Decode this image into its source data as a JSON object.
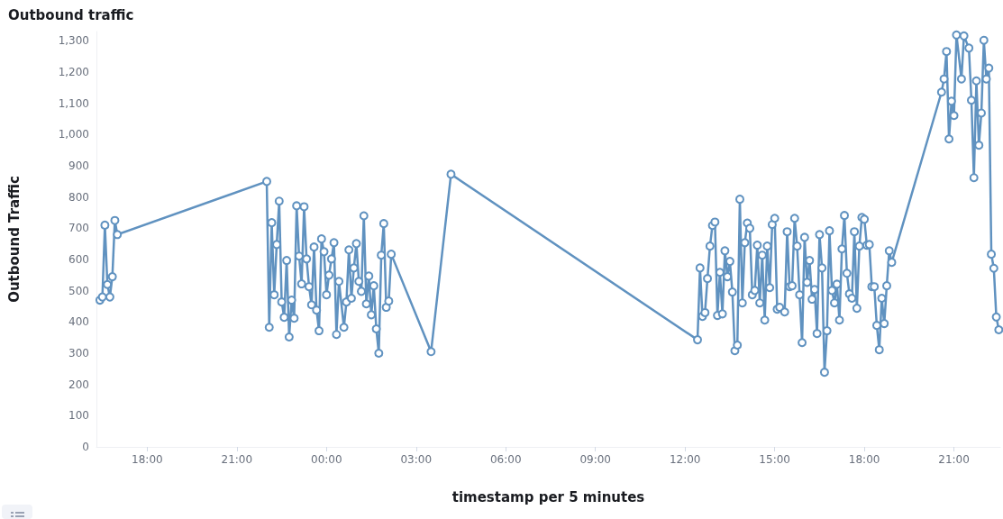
{
  "chart_data": {
    "type": "line",
    "title": "Outbound traffic",
    "xlabel": "timestamp per 5 minutes",
    "ylabel": "Outbound Traffic",
    "x": [
      "--01-01T16:25",
      "--01-01T16:30",
      "--01-01T16:35",
      "--01-01T16:40",
      "--01-01T16:45",
      "--01-01T16:50",
      "--01-01T16:55",
      "--01-01T17:00",
      "--01-01T22:00",
      "--01-01T22:05",
      "--01-01T22:10",
      "--01-01T22:15",
      "--01-01T22:20",
      "--01-01T22:25",
      "--01-01T22:30",
      "--01-01T22:35",
      "--01-01T22:40",
      "--01-01T22:45",
      "--01-01T22:50",
      "--01-01T22:55",
      "--01-01T23:00",
      "--01-01T23:05",
      "--01-01T23:10",
      "--01-01T23:15",
      "--01-01T23:20",
      "--01-01T23:25",
      "--01-01T23:30",
      "--01-01T23:35",
      "--01-01T23:40",
      "--01-01T23:45",
      "--01-01T23:50",
      "--01-01T23:55",
      "--01-02T00:00",
      "--01-02T00:05",
      "--01-02T00:10",
      "--01-02T00:15",
      "--01-02T00:20",
      "--01-02T00:25",
      "--01-02T00:35",
      "--01-02T00:40",
      "--01-02T00:45",
      "--01-02T00:50",
      "--01-02T00:55",
      "--01-02T01:00",
      "--01-02T01:05",
      "--01-02T01:10",
      "--01-02T01:15",
      "--01-02T01:20",
      "--01-02T01:25",
      "--01-02T01:30",
      "--01-02T01:35",
      "--01-02T01:40",
      "--01-02T01:45",
      "--01-02T01:50",
      "--01-02T01:55",
      "--01-02T02:00",
      "--01-02T02:05",
      "--01-02T02:10",
      "--01-02T03:30",
      "--01-02T04:10",
      "--01-02T12:25",
      "--01-02T12:30",
      "--01-02T12:35",
      "--01-02T12:40",
      "--01-02T12:45",
      "--01-02T12:50",
      "--01-02T12:55",
      "--01-02T13:00",
      "--01-02T13:05",
      "--01-02T13:10",
      "--01-02T13:15",
      "--01-02T13:20",
      "--01-02T13:25",
      "--01-02T13:30",
      "--01-02T13:35",
      "--01-02T13:40",
      "--01-02T13:45",
      "--01-02T13:50",
      "--01-02T13:55",
      "--01-02T14:00",
      "--01-02T14:05",
      "--01-02T14:10",
      "--01-02T14:15",
      "--01-02T14:20",
      "--01-02T14:25",
      "--01-02T14:30",
      "--01-02T14:35",
      "--01-02T14:40",
      "--01-02T14:45",
      "--01-02T14:50",
      "--01-02T14:55",
      "--01-02T15:00",
      "--01-02T15:05",
      "--01-02T15:10",
      "--01-02T15:20",
      "--01-02T15:25",
      "--01-02T15:30",
      "--01-02T15:35",
      "--01-02T15:40",
      "--01-02T15:45",
      "--01-02T15:50",
      "--01-02T15:55",
      "--01-02T16:00",
      "--01-02T16:05",
      "--01-02T16:10",
      "--01-02T16:15",
      "--01-02T16:20",
      "--01-02T16:25",
      "--01-02T16:30",
      "--01-02T16:35",
      "--01-02T16:40",
      "--01-02T16:45",
      "--01-02T16:50",
      "--01-02T16:55",
      "--01-02T17:00",
      "--01-02T17:05",
      "--01-02T17:10",
      "--01-02T17:15",
      "--01-02T17:20",
      "--01-02T17:25",
      "--01-02T17:30",
      "--01-02T17:35",
      "--01-02T17:40",
      "--01-02T17:45",
      "--01-02T17:50",
      "--01-02T17:55",
      "--01-02T18:00",
      "--01-02T18:05",
      "--01-02T18:10",
      "--01-02T18:15",
      "--01-02T18:20",
      "--01-02T18:25",
      "--01-02T18:30",
      "--01-02T18:35",
      "--01-02T18:40",
      "--01-02T18:45",
      "--01-02T18:50",
      "--01-02T18:55",
      "--01-02T20:35",
      "--01-02T20:40",
      "--01-02T20:45",
      "--01-02T20:50",
      "--01-02T20:55",
      "--01-02T21:00",
      "--01-02T21:05",
      "--01-02T21:15",
      "--01-02T21:20",
      "--01-02T21:30",
      "--01-02T21:35",
      "--01-02T21:40",
      "--01-02T21:45",
      "--01-02T21:50",
      "--01-02T21:55",
      "--01-02T22:00",
      "--01-02T22:05",
      "--01-02T22:10",
      "--01-02T22:15",
      "--01-02T22:20",
      "--01-02T22:25",
      "--01-02T22:30"
    ],
    "series": [
      {
        "color": "#6092c0",
        "values": [
          470,
          480,
          710,
          520,
          480,
          545,
          725,
          680,
          850,
          383,
          718,
          487,
          648,
          787,
          464,
          415,
          597,
          352,
          470,
          412,
          772,
          611,
          522,
          769,
          602,
          513,
          455,
          640,
          438,
          372,
          666,
          625,
          487,
          550,
          602,
          654,
          360,
          530,
          383,
          464,
          631,
          476,
          573,
          651,
          530,
          498,
          740,
          458,
          547,
          423,
          516,
          378,
          300,
          614,
          715,
          447,
          467,
          617,
          305,
          873,
          343,
          573,
          418,
          430,
          539,
          643,
          709,
          720,
          421,
          559,
          426,
          628,
          545,
          594,
          496,
          308,
          326,
          793,
          461,
          654,
          717,
          700,
          487,
          501,
          646,
          461,
          614,
          406,
          643,
          510,
          712,
          732,
          441,
          447,
          432,
          689,
          513,
          516,
          732,
          643,
          487,
          334,
          671,
          527,
          597,
          473,
          504,
          363,
          680,
          573,
          239,
          372,
          692,
          501,
          461,
          521,
          406,
          634,
          741,
          556,
          490,
          476,
          689,
          444,
          643,
          735,
          729,
          646,
          648,
          513,
          513,
          389,
          311,
          476,
          395,
          516,
          628,
          591,
          1136,
          1178,
          1266,
          986,
          1107,
          1061,
          1319,
          1178,
          1316,
          1277,
          1110,
          862,
          1172,
          966,
          1069,
          1302,
          1178,
          1213,
          617,
          572,
          416,
          375
        ]
      }
    ],
    "xlim": [
      "--01-01T16:18",
      "--01-02T22:33"
    ],
    "xticks": [
      {
        "value": "--01-01T18:00",
        "label": "18:00"
      },
      {
        "value": "--01-01T21:00",
        "label": "21:00"
      },
      {
        "value": "--01-02T00:00",
        "label": "00:00"
      },
      {
        "value": "--01-02T03:00",
        "label": "03:00"
      },
      {
        "value": "--01-02T06:00",
        "label": "06:00"
      },
      {
        "value": "--01-02T09:00",
        "label": "09:00"
      },
      {
        "value": "--01-02T12:00",
        "label": "12:00"
      },
      {
        "value": "--01-02T15:00",
        "label": "15:00"
      },
      {
        "value": "--01-02T18:00",
        "label": "18:00"
      },
      {
        "value": "--01-02T21:00",
        "label": "21:00"
      }
    ],
    "ylim": [
      0,
      1330
    ],
    "yticks": [
      0,
      100,
      200,
      300,
      400,
      500,
      600,
      700,
      800,
      900,
      {
        "value": 1000,
        "label": "1,000"
      },
      {
        "value": 1100,
        "label": "1,100"
      },
      {
        "value": 1200,
        "label": "1,200"
      },
      {
        "value": 1300,
        "label": "1,300"
      }
    ],
    "grid": false,
    "marker": "circle",
    "line_style": "solid"
  }
}
